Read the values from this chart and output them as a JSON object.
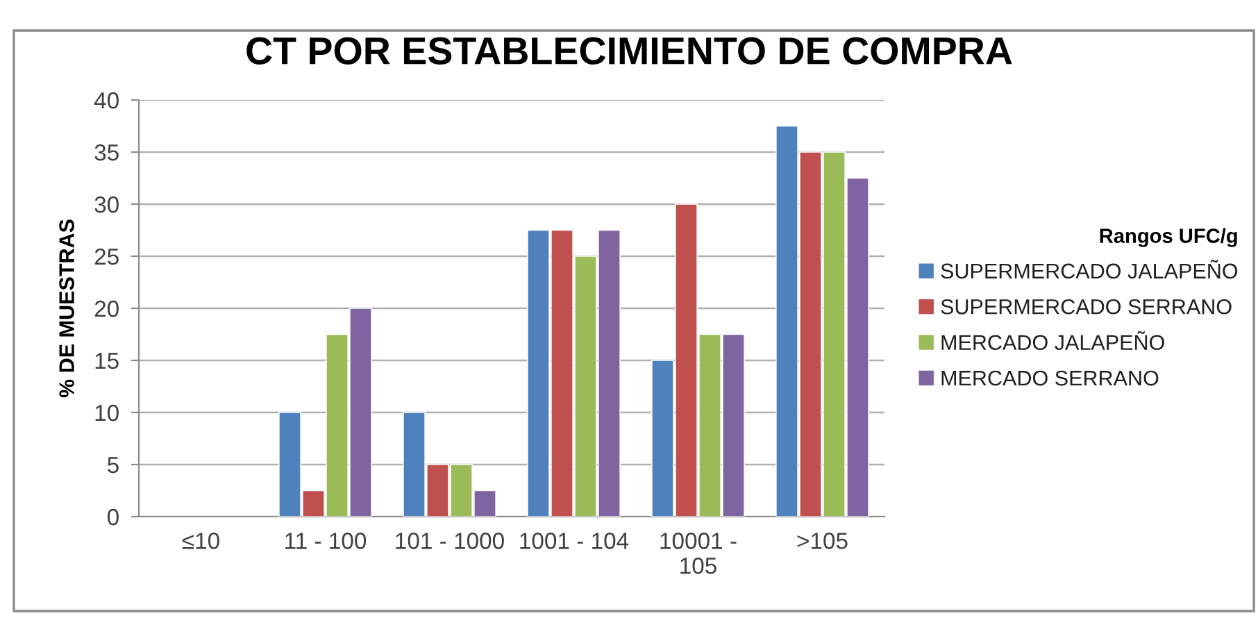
{
  "chart_data": {
    "type": "bar",
    "title": "CT POR ESTABLECIMIENTO DE COMPRA",
    "ylabel": "% DE MUESTRAS",
    "legend_title": "Rangos UFC/g",
    "categories": [
      "≤10",
      "11 - 100",
      "101 - 1000",
      "1001 - 104",
      "10001 -\n105",
      ">105"
    ],
    "series": [
      {
        "name": "SUPERMERCADO JALAPEÑO",
        "color": "#4f81bd",
        "values": [
          0,
          10,
          10,
          27.5,
          15,
          37.5
        ]
      },
      {
        "name": "SUPERMERCADO SERRANO",
        "color": "#c0504d",
        "values": [
          0,
          2.5,
          5,
          27.5,
          30,
          35
        ]
      },
      {
        "name": "MERCADO JALAPEÑO",
        "color": "#9bbb59",
        "values": [
          0,
          17.5,
          5,
          25,
          17.5,
          35
        ]
      },
      {
        "name": "MERCADO SERRANO",
        "color": "#8064a2",
        "values": [
          0,
          20,
          2.5,
          27.5,
          17.5,
          32.5
        ]
      }
    ],
    "ylim": [
      0,
      40
    ],
    "yticks": [
      0,
      5,
      10,
      15,
      20,
      25,
      30,
      35,
      40
    ],
    "grid": "y",
    "legend": "right"
  }
}
